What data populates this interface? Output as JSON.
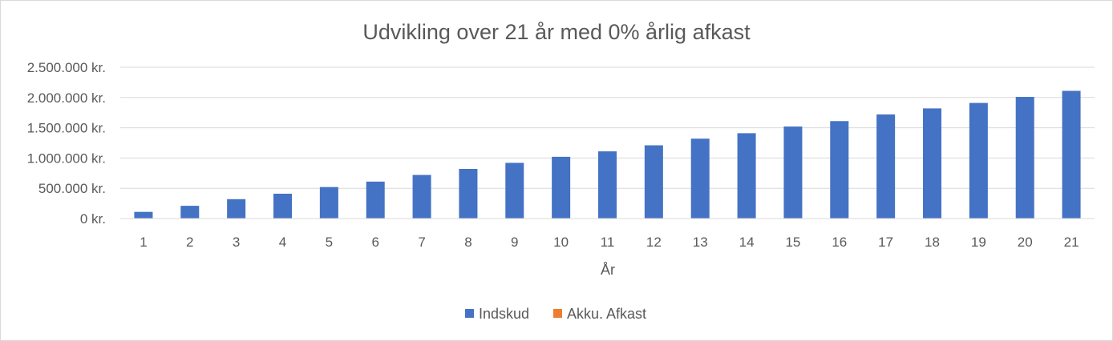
{
  "chart_data": {
    "type": "bar",
    "title": "Udvikling over 21 år med 0% årlig afkast",
    "xlabel": "År",
    "ylabel": "",
    "categories": [
      "1",
      "2",
      "3",
      "4",
      "5",
      "6",
      "7",
      "8",
      "9",
      "10",
      "11",
      "12",
      "13",
      "14",
      "15",
      "16",
      "17",
      "18",
      "19",
      "20",
      "21"
    ],
    "ylim": [
      0,
      2500000
    ],
    "yticks": [
      0,
      500000,
      1000000,
      1500000,
      2000000,
      2500000
    ],
    "ytick_labels": [
      "0 kr.",
      "500.000 kr.",
      "1.000.000 kr.",
      "1.500.000 kr.",
      "2.000.000 kr.",
      "2.500.000 kr."
    ],
    "grid": true,
    "legend_position": "bottom",
    "series": [
      {
        "name": "Indskud",
        "color": "#4472C4",
        "values": [
          110000,
          210000,
          320000,
          410000,
          520000,
          610000,
          720000,
          820000,
          920000,
          1020000,
          1110000,
          1210000,
          1320000,
          1410000,
          1520000,
          1610000,
          1720000,
          1820000,
          1910000,
          2010000,
          2110000
        ]
      },
      {
        "name": "Akku. Afkast",
        "color": "#ED7D31",
        "values": [
          0,
          0,
          0,
          0,
          0,
          0,
          0,
          0,
          0,
          0,
          0,
          0,
          0,
          0,
          0,
          0,
          0,
          0,
          0,
          0,
          0
        ]
      }
    ]
  }
}
